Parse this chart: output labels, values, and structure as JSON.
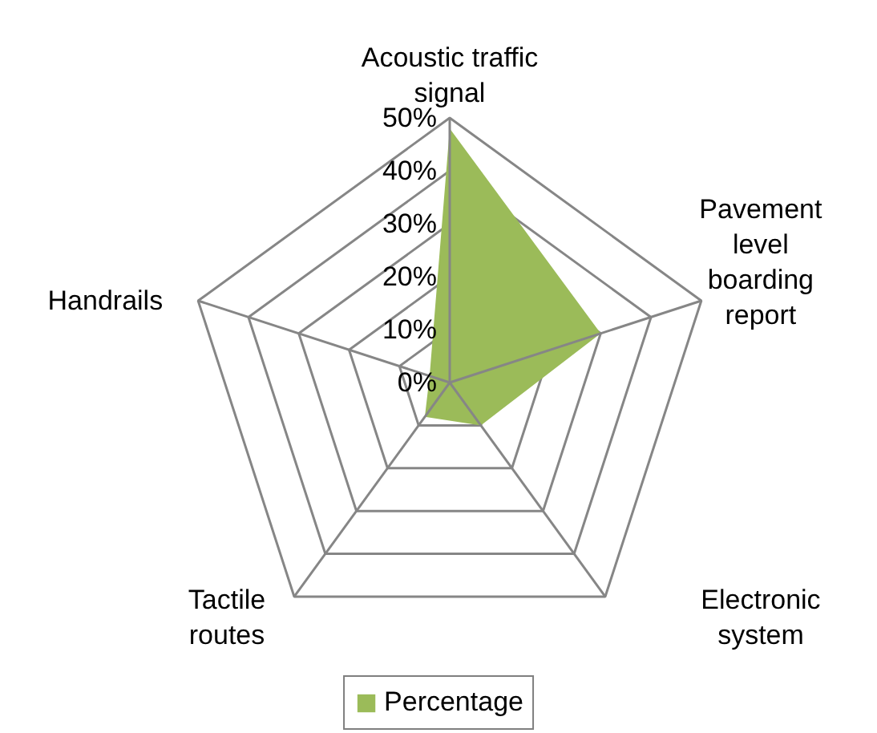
{
  "chart_data": {
    "type": "radar",
    "categories": [
      "Acoustic traffic signal",
      "Pavement level boarding report",
      "Electronic system",
      "Tactile routes",
      "Handrails"
    ],
    "series": [
      {
        "name": "Percentage",
        "color": "#9bbb59",
        "values": [
          48,
          30,
          10,
          8,
          4
        ]
      }
    ],
    "ylim": [
      0,
      50
    ],
    "yticks": [
      {
        "value": 0,
        "label": "0%"
      },
      {
        "value": 10,
        "label": "10%"
      },
      {
        "value": 20,
        "label": "20%"
      },
      {
        "value": 30,
        "label": "30%"
      },
      {
        "value": 40,
        "label": "40%"
      },
      {
        "value": 50,
        "label": "50%"
      }
    ],
    "legend": "bottom"
  }
}
